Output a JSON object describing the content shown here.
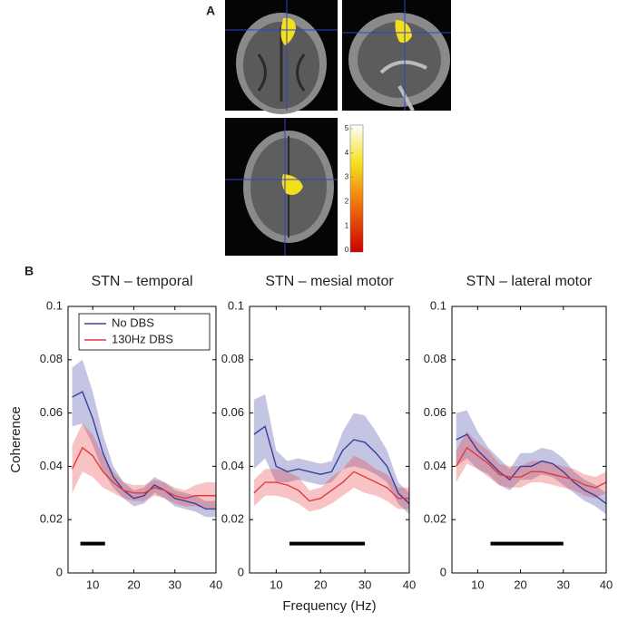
{
  "panel_labels": [
    "A",
    "B"
  ],
  "colorbar": {
    "ticks": [
      0,
      1,
      2,
      3,
      4,
      5
    ]
  },
  "shared": {
    "xlabel": "Frequency (Hz)",
    "ylabel": "Coherence"
  },
  "chart_data": [
    {
      "type": "line",
      "title": "STN – temporal",
      "legend": "upper left",
      "x": [
        5,
        7.5,
        10,
        12.5,
        15,
        17.5,
        20,
        22.5,
        25,
        27.5,
        30,
        32.5,
        35,
        37.5,
        40
      ],
      "xlim": [
        4,
        40
      ],
      "xticks": [
        10,
        20,
        30,
        40
      ],
      "ylim": [
        0,
        0.1
      ],
      "yticks": [
        0,
        0.02,
        0.04,
        0.06,
        0.08,
        0.1
      ],
      "significance": {
        "x": [
          7,
          13
        ],
        "y": 0.011
      },
      "series": [
        {
          "name": "No DBS",
          "color": "#3b3f9e",
          "values": [
            0.066,
            0.068,
            0.058,
            0.045,
            0.036,
            0.031,
            0.028,
            0.029,
            0.033,
            0.031,
            0.028,
            0.027,
            0.026,
            0.024,
            0.024
          ],
          "error": [
            0.011,
            0.012,
            0.01,
            0.007,
            0.004,
            0.003,
            0.003,
            0.003,
            0.003,
            0.003,
            0.003,
            0.003,
            0.003,
            0.003,
            0.003
          ]
        },
        {
          "name": "130Hz DBS",
          "color": "#e5393c",
          "values": [
            0.039,
            0.047,
            0.044,
            0.038,
            0.034,
            0.031,
            0.03,
            0.03,
            0.032,
            0.031,
            0.029,
            0.028,
            0.029,
            0.029,
            0.029
          ],
          "error": [
            0.009,
            0.009,
            0.008,
            0.006,
            0.004,
            0.003,
            0.003,
            0.003,
            0.003,
            0.003,
            0.003,
            0.003,
            0.004,
            0.005,
            0.005
          ]
        }
      ]
    },
    {
      "type": "line",
      "title": "STN – mesial motor",
      "x": [
        5,
        7.5,
        10,
        12.5,
        15,
        17.5,
        20,
        22.5,
        25,
        27.5,
        30,
        32.5,
        35,
        37.5,
        40
      ],
      "xlim": [
        4,
        40
      ],
      "xticks": [
        10,
        20,
        30,
        40
      ],
      "ylim": [
        0,
        0.1
      ],
      "yticks": [
        0,
        0.02,
        0.04,
        0.06,
        0.08,
        0.1
      ],
      "significance": {
        "x": [
          13,
          30
        ],
        "y": 0.011
      },
      "series": [
        {
          "color": "#3b3f9e",
          "values": [
            0.052,
            0.055,
            0.04,
            0.038,
            0.039,
            0.038,
            0.037,
            0.038,
            0.046,
            0.05,
            0.049,
            0.045,
            0.04,
            0.03,
            0.026
          ],
          "error": [
            0.013,
            0.012,
            0.006,
            0.004,
            0.004,
            0.004,
            0.004,
            0.004,
            0.007,
            0.01,
            0.01,
            0.008,
            0.006,
            0.004,
            0.004
          ]
        },
        {
          "color": "#e5393c",
          "values": [
            0.03,
            0.034,
            0.034,
            0.033,
            0.031,
            0.027,
            0.028,
            0.031,
            0.034,
            0.038,
            0.036,
            0.034,
            0.032,
            0.028,
            0.028
          ],
          "error": [
            0.005,
            0.005,
            0.005,
            0.005,
            0.005,
            0.004,
            0.004,
            0.005,
            0.005,
            0.006,
            0.006,
            0.005,
            0.005,
            0.004,
            0.004
          ]
        }
      ]
    },
    {
      "type": "line",
      "title": "STN – lateral motor",
      "x": [
        5,
        7.5,
        10,
        12.5,
        15,
        17.5,
        20,
        22.5,
        25,
        27.5,
        30,
        32.5,
        35,
        37.5,
        40
      ],
      "xlim": [
        4,
        40
      ],
      "xticks": [
        10,
        20,
        30,
        40
      ],
      "ylim": [
        0,
        0.1
      ],
      "yticks": [
        0,
        0.02,
        0.04,
        0.06,
        0.08,
        0.1
      ],
      "significance": {
        "x": [
          13,
          30
        ],
        "y": 0.011
      },
      "series": [
        {
          "color": "#3b3f9e",
          "values": [
            0.05,
            0.052,
            0.046,
            0.042,
            0.038,
            0.035,
            0.04,
            0.04,
            0.042,
            0.041,
            0.038,
            0.034,
            0.031,
            0.029,
            0.026
          ],
          "error": [
            0.01,
            0.009,
            0.007,
            0.005,
            0.005,
            0.004,
            0.005,
            0.005,
            0.005,
            0.005,
            0.005,
            0.004,
            0.004,
            0.004,
            0.004
          ]
        },
        {
          "color": "#e5393c",
          "values": [
            0.04,
            0.047,
            0.044,
            0.041,
            0.037,
            0.036,
            0.036,
            0.038,
            0.038,
            0.037,
            0.036,
            0.035,
            0.033,
            0.032,
            0.034
          ],
          "error": [
            0.006,
            0.006,
            0.005,
            0.005,
            0.004,
            0.004,
            0.004,
            0.004,
            0.004,
            0.004,
            0.004,
            0.004,
            0.004,
            0.004,
            0.004
          ]
        }
      ]
    }
  ]
}
